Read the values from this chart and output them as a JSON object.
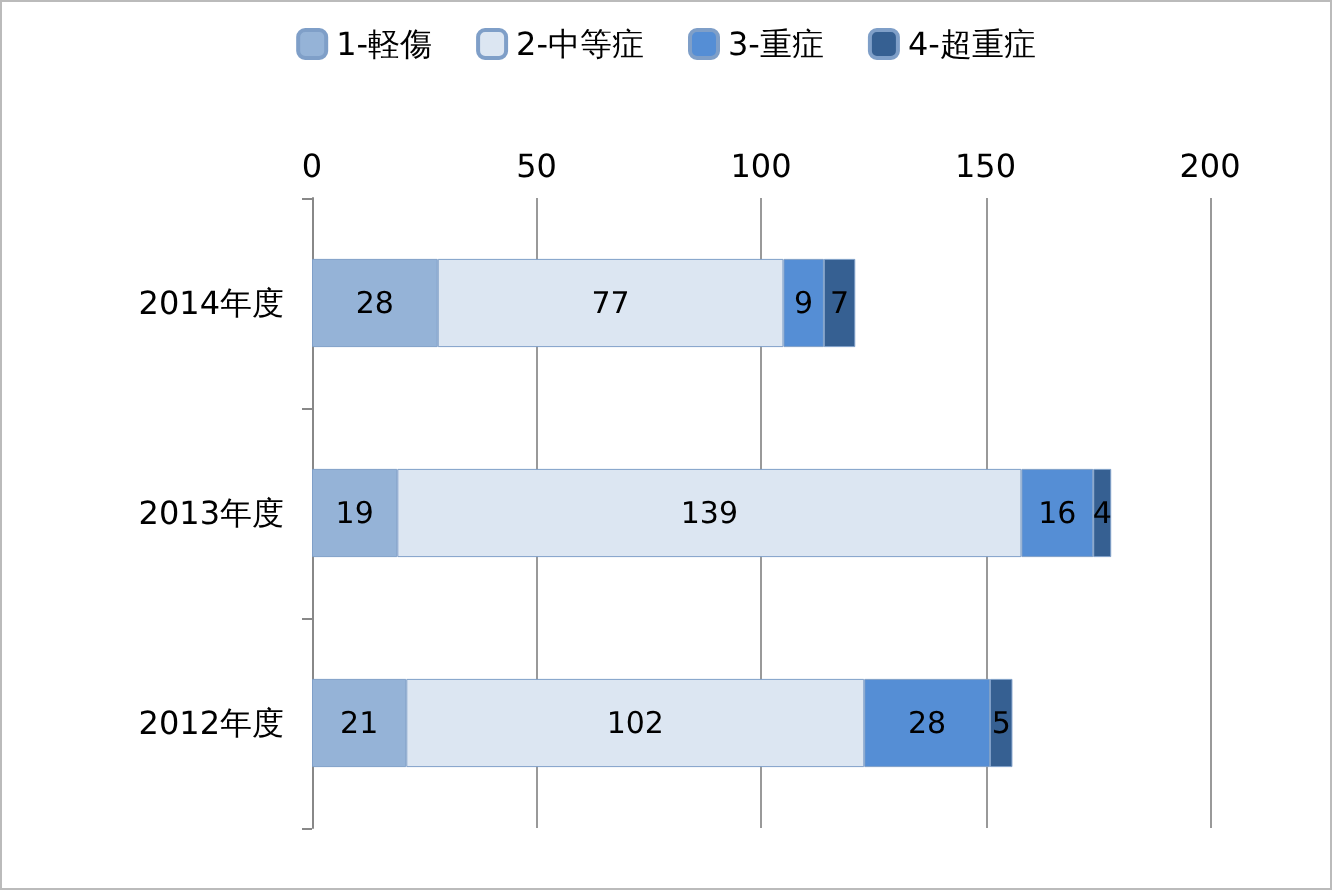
{
  "chart_data": {
    "type": "bar",
    "orientation": "horizontal",
    "stacked": true,
    "categories": [
      "2014年度",
      "2013年度",
      "2012年度"
    ],
    "series": [
      {
        "name": "1-軽傷",
        "color": "#95b3d7",
        "values": [
          28,
          19,
          21
        ]
      },
      {
        "name": "2-中等症",
        "color": "#dce6f2",
        "values": [
          77,
          139,
          102
        ]
      },
      {
        "name": "3-重症",
        "color": "#558ed5",
        "values": [
          9,
          16,
          28
        ]
      },
      {
        "name": "4-超重症",
        "color": "#366092",
        "values": [
          7,
          4,
          5
        ]
      }
    ],
    "xlim": [
      0,
      200
    ],
    "xticks": [
      0,
      50,
      100,
      150,
      200
    ],
    "grid": "x",
    "legend": "top",
    "data_labels": true
  }
}
